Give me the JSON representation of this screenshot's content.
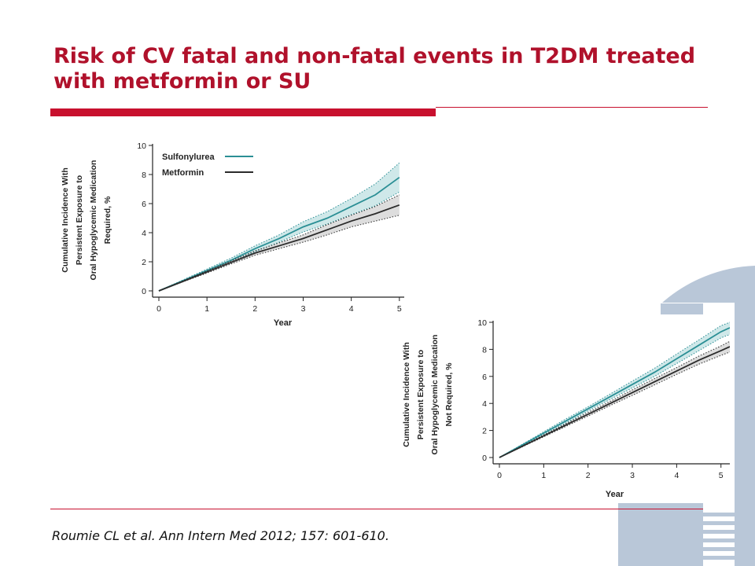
{
  "slide": {
    "title": "Risk of CV fatal and non-fatal events in T2DM treated with metformin or SU",
    "citation": "Roumie CL et al. Ann Intern Med 2012; 157: 601-610."
  },
  "colors": {
    "title": "#b0112b",
    "rule": "#c8102e",
    "sulfonylurea": "#2b8f95",
    "sulfonylurea_band": "#bfe0e1",
    "metformin": "#2b2b2b",
    "metformin_band": "#d2d2d2",
    "decor": "#b9c7d8"
  },
  "chart_data": [
    {
      "type": "line",
      "ylabel": [
        "Cumulative Incidence With",
        "Persistent Exposure to",
        "Oral Hypoglycemic Medication",
        "Required, %"
      ],
      "xlabel": "Year",
      "xlim": [
        0,
        5.15
      ],
      "ylim": [
        0,
        10
      ],
      "xticks": [
        0,
        1,
        2,
        3,
        4,
        5
      ],
      "yticks": [
        0,
        2,
        4,
        6,
        8,
        10
      ],
      "legend": "top-left",
      "series": [
        {
          "name": "Sulfonylurea",
          "x": [
            0,
            0.5,
            1,
            1.5,
            2,
            2.5,
            3,
            3.5,
            4,
            4.5,
            5
          ],
          "values": [
            0,
            0.7,
            1.4,
            2.1,
            2.9,
            3.6,
            4.4,
            5.0,
            5.8,
            6.6,
            7.8
          ],
          "lower": [
            0,
            0.65,
            1.3,
            1.95,
            2.7,
            3.35,
            4.05,
            4.6,
            5.25,
            5.85,
            6.8
          ],
          "upper": [
            0,
            0.75,
            1.5,
            2.25,
            3.1,
            3.85,
            4.75,
            5.45,
            6.35,
            7.35,
            8.8
          ]
        },
        {
          "name": "Metformin",
          "x": [
            0,
            0.5,
            1,
            1.5,
            2,
            2.5,
            3,
            3.5,
            4,
            4.5,
            5
          ],
          "values": [
            0,
            0.65,
            1.3,
            1.95,
            2.6,
            3.1,
            3.6,
            4.2,
            4.8,
            5.3,
            5.9
          ],
          "lower": [
            0,
            0.62,
            1.22,
            1.85,
            2.45,
            2.9,
            3.35,
            3.85,
            4.4,
            4.8,
            5.2
          ],
          "upper": [
            0,
            0.68,
            1.38,
            2.05,
            2.75,
            3.3,
            3.85,
            4.55,
            5.2,
            5.8,
            6.6
          ]
        }
      ]
    },
    {
      "type": "line",
      "ylabel": [
        "Cumulative Incidence With",
        "Persistent Exposure to",
        "Oral Hypoglycemic Medication",
        "Not Required, %"
      ],
      "xlabel": "Year",
      "xlim": [
        0,
        5.2
      ],
      "ylim": [
        0,
        10
      ],
      "xticks": [
        0,
        1,
        2,
        3,
        4,
        5
      ],
      "yticks": [
        0,
        2,
        4,
        6,
        8,
        10
      ],
      "legend": "none",
      "series": [
        {
          "name": "Sulfonylurea",
          "x": [
            0,
            0.5,
            1,
            1.5,
            2,
            2.5,
            3,
            3.5,
            4,
            4.5,
            5,
            5.2
          ],
          "values": [
            0,
            0.9,
            1.8,
            2.7,
            3.6,
            4.5,
            5.4,
            6.3,
            7.3,
            8.3,
            9.3,
            9.6
          ],
          "lower": [
            0,
            0.85,
            1.7,
            2.55,
            3.45,
            4.3,
            5.15,
            6.0,
            6.95,
            7.9,
            8.85,
            9.1
          ],
          "upper": [
            0,
            0.95,
            1.9,
            2.85,
            3.75,
            4.7,
            5.65,
            6.6,
            7.65,
            8.7,
            9.75,
            10.0
          ]
        },
        {
          "name": "Metformin",
          "x": [
            0,
            0.5,
            1,
            1.5,
            2,
            2.5,
            3,
            3.5,
            4,
            4.5,
            5,
            5.2
          ],
          "values": [
            0,
            0.8,
            1.6,
            2.4,
            3.2,
            4.0,
            4.8,
            5.6,
            6.4,
            7.2,
            7.9,
            8.2
          ],
          "lower": [
            0,
            0.77,
            1.53,
            2.3,
            3.07,
            3.85,
            4.6,
            5.37,
            6.15,
            6.9,
            7.55,
            7.8
          ],
          "upper": [
            0,
            0.83,
            1.67,
            2.5,
            3.33,
            4.15,
            5.0,
            5.83,
            6.65,
            7.5,
            8.25,
            8.6
          ]
        }
      ]
    }
  ]
}
